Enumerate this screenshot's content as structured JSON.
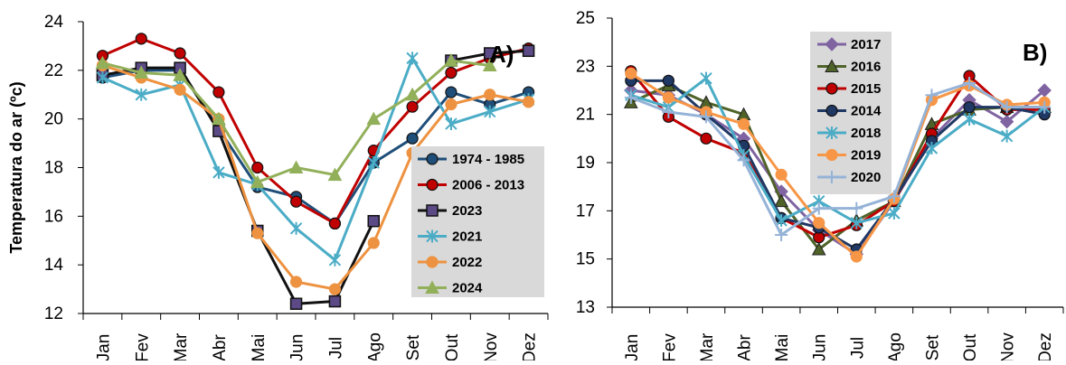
{
  "chart_data": [
    {
      "panel": "A)",
      "type": "line",
      "ylabel": "Temperatura do ar (ºc)",
      "ylim": [
        12,
        24
      ],
      "yticks": [
        12,
        14,
        16,
        18,
        20,
        22,
        24
      ],
      "categories": [
        "Jan",
        "Fev",
        "Mar",
        "Abr",
        "Mai",
        "Jun",
        "Jul",
        "Ago",
        "Set",
        "Out",
        "Nov",
        "Dez"
      ],
      "legend_position": "lower-right",
      "grid": false,
      "series": [
        {
          "name": "1974 - 1985",
          "color": "#1f4e79",
          "marker": "circle",
          "values": [
            21.7,
            22.0,
            22.0,
            19.6,
            17.2,
            16.8,
            15.7,
            18.2,
            19.2,
            21.1,
            20.6,
            21.1
          ]
        },
        {
          "name": "2006 - 2013",
          "color": "#c00000",
          "marker": "circle",
          "values": [
            22.6,
            23.3,
            22.7,
            21.1,
            18.0,
            16.6,
            15.7,
            18.7,
            20.5,
            21.9,
            22.5,
            22.9
          ]
        },
        {
          "name": "2023",
          "color": "#111111",
          "marker": "square",
          "values": [
            21.8,
            22.1,
            22.1,
            19.5,
            15.4,
            12.4,
            12.5,
            15.8,
            null,
            22.4,
            22.7,
            22.8
          ]
        },
        {
          "name": "2021",
          "color": "#4bacc6",
          "marker": "star",
          "values": [
            21.7,
            21.0,
            21.4,
            17.8,
            17.3,
            15.5,
            14.2,
            18.2,
            22.5,
            19.8,
            20.3,
            20.8
          ]
        },
        {
          "name": "2022",
          "color": "#ed9240",
          "marker": "circle",
          "values": [
            22.2,
            21.7,
            21.2,
            20.0,
            15.3,
            13.3,
            13.0,
            14.9,
            18.6,
            20.6,
            21.0,
            20.7
          ]
        },
        {
          "name": "2024",
          "color": "#92b05a",
          "marker": "triangle",
          "values": [
            22.3,
            21.9,
            21.8,
            20.0,
            17.4,
            18.0,
            17.7,
            20.0,
            21.0,
            22.4,
            22.2,
            null
          ]
        }
      ]
    },
    {
      "panel": "B)",
      "type": "line",
      "ylim": [
        13,
        25
      ],
      "yticks": [
        13,
        15,
        17,
        19,
        21,
        23,
        25
      ],
      "categories": [
        "Jan",
        "Fev",
        "Mar",
        "Abr",
        "Mai",
        "Jun",
        "Jul",
        "Ago",
        "Set",
        "Out",
        "Nov",
        "Dez"
      ],
      "legend_position": "top-left",
      "grid": false,
      "series": [
        {
          "name": "2017",
          "color": "#8064a2",
          "marker": "diamond",
          "values": [
            22.0,
            21.8,
            21.0,
            20.0,
            17.8,
            16.2,
            15.2,
            17.4,
            20.0,
            21.6,
            20.7,
            22.0
          ]
        },
        {
          "name": "2016",
          "color": "#4f6228",
          "marker": "triangle",
          "values": [
            21.5,
            22.2,
            21.5,
            21.0,
            17.4,
            15.4,
            16.6,
            17.4,
            20.6,
            21.2,
            21.3,
            21.3
          ]
        },
        {
          "name": "2015",
          "color": "#c00000",
          "marker": "circle",
          "values": [
            22.8,
            20.9,
            20.0,
            19.4,
            16.7,
            15.9,
            16.4,
            17.4,
            20.2,
            22.6,
            21.2,
            21.2
          ]
        },
        {
          "name": "2014",
          "color": "#1f3864",
          "marker": "circle",
          "values": [
            22.4,
            22.4,
            21.0,
            19.7,
            16.7,
            16.3,
            15.4,
            17.5,
            19.9,
            21.3,
            21.3,
            21.0
          ]
        },
        {
          "name": "2018",
          "color": "#4bacc6",
          "marker": "star",
          "values": [
            21.8,
            21.3,
            22.5,
            19.3,
            16.6,
            17.4,
            16.5,
            16.9,
            19.6,
            20.8,
            20.1,
            21.3
          ]
        },
        {
          "name": "2019",
          "color": "#f79646",
          "marker": "circle",
          "values": [
            22.7,
            21.7,
            21.1,
            20.6,
            18.5,
            16.5,
            15.1,
            17.5,
            21.6,
            22.2,
            21.4,
            21.5
          ]
        },
        {
          "name": "2020",
          "color": "#95b3d7",
          "marker": "plus",
          "values": [
            21.7,
            21.1,
            20.9,
            19.1,
            16.0,
            17.1,
            17.1,
            17.6,
            21.8,
            22.3,
            21.3,
            21.3
          ]
        }
      ]
    }
  ]
}
